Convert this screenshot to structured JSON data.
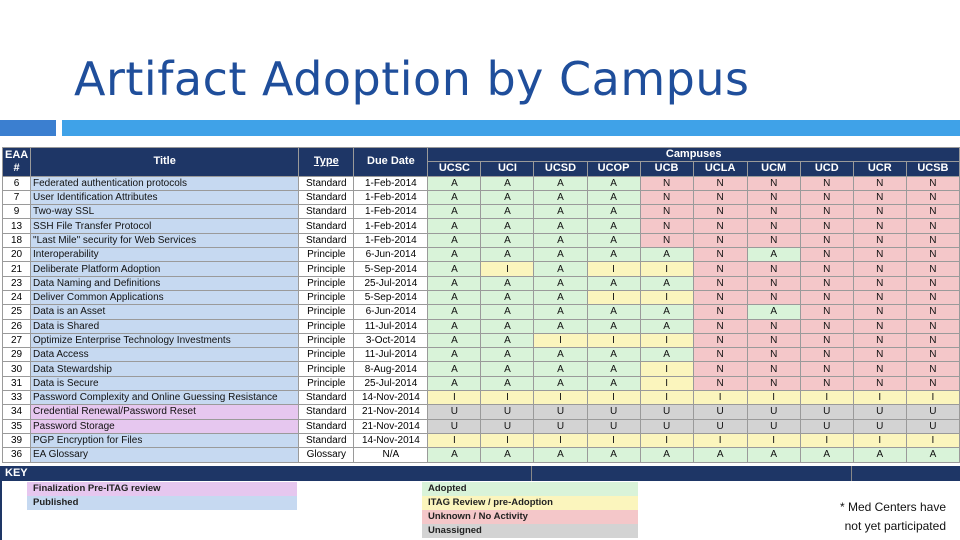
{
  "slide_title": "Artifact Adoption by Campus",
  "table": {
    "headers": {
      "eaa": "EAA\n#",
      "title": "Title",
      "type": "Type",
      "due": "Due Date",
      "campuses_group": "Campuses"
    },
    "campuses": [
      "UCSC",
      "UCI",
      "UCSD",
      "UCOP",
      "UCB",
      "UCLA",
      "UCM",
      "UCD",
      "UCR",
      "UCSB"
    ],
    "rows": [
      {
        "num": "6",
        "title": "Federated authentication protocols",
        "type": "Standard",
        "due": "1-Feb-2014",
        "status": [
          "A",
          "A",
          "A",
          "A",
          "N",
          "N",
          "N",
          "N",
          "N",
          "N"
        ]
      },
      {
        "num": "7",
        "title": "User Identification Attributes",
        "type": "Standard",
        "due": "1-Feb-2014",
        "status": [
          "A",
          "A",
          "A",
          "A",
          "N",
          "N",
          "N",
          "N",
          "N",
          "N"
        ]
      },
      {
        "num": "9",
        "title": "Two-way SSL",
        "type": "Standard",
        "due": "1-Feb-2014",
        "status": [
          "A",
          "A",
          "A",
          "A",
          "N",
          "N",
          "N",
          "N",
          "N",
          "N"
        ]
      },
      {
        "num": "13",
        "title": "SSH File Transfer Protocol",
        "type": "Standard",
        "due": "1-Feb-2014",
        "status": [
          "A",
          "A",
          "A",
          "A",
          "N",
          "N",
          "N",
          "N",
          "N",
          "N"
        ]
      },
      {
        "num": "18",
        "title": "\"Last Mile\" security for Web Services",
        "type": "Standard",
        "due": "1-Feb-2014",
        "status": [
          "A",
          "A",
          "A",
          "A",
          "N",
          "N",
          "N",
          "N",
          "N",
          "N"
        ]
      },
      {
        "num": "20",
        "title": "Interoperability",
        "type": "Principle",
        "due": "6-Jun-2014",
        "status": [
          "A",
          "A",
          "A",
          "A",
          "A",
          "N",
          "A",
          "N",
          "N",
          "N"
        ]
      },
      {
        "num": "21",
        "title": "Deliberate Platform Adoption",
        "type": "Principle",
        "due": "5-Sep-2014",
        "status": [
          "A",
          "I",
          "A",
          "I",
          "I",
          "N",
          "N",
          "N",
          "N",
          "N"
        ]
      },
      {
        "num": "23",
        "title": "Data Naming and Definitions",
        "type": "Principle",
        "due": "25-Jul-2014",
        "status": [
          "A",
          "A",
          "A",
          "A",
          "A",
          "N",
          "N",
          "N",
          "N",
          "N"
        ]
      },
      {
        "num": "24",
        "title": "Deliver Common Applications",
        "type": "Principle",
        "due": "5-Sep-2014",
        "status": [
          "A",
          "A",
          "A",
          "I",
          "I",
          "N",
          "N",
          "N",
          "N",
          "N"
        ]
      },
      {
        "num": "25",
        "title": "Data is an Asset",
        "type": "Principle",
        "due": "6-Jun-2014",
        "status": [
          "A",
          "A",
          "A",
          "A",
          "A",
          "N",
          "A",
          "N",
          "N",
          "N"
        ]
      },
      {
        "num": "26",
        "title": "Data is Shared",
        "type": "Principle",
        "due": "11-Jul-2014",
        "status": [
          "A",
          "A",
          "A",
          "A",
          "A",
          "N",
          "N",
          "N",
          "N",
          "N"
        ]
      },
      {
        "num": "27",
        "title": "Optimize Enterprise Technology Investments",
        "type": "Principle",
        "due": "3-Oct-2014",
        "status": [
          "A",
          "A",
          "I",
          "I",
          "I",
          "N",
          "N",
          "N",
          "N",
          "N"
        ]
      },
      {
        "num": "29",
        "title": "Data Access",
        "type": "Principle",
        "due": "11-Jul-2014",
        "status": [
          "A",
          "A",
          "A",
          "A",
          "A",
          "N",
          "N",
          "N",
          "N",
          "N"
        ]
      },
      {
        "num": "30",
        "title": "Data Stewardship",
        "type": "Principle",
        "due": "8-Aug-2014",
        "status": [
          "A",
          "A",
          "A",
          "A",
          "I",
          "N",
          "N",
          "N",
          "N",
          "N"
        ]
      },
      {
        "num": "31",
        "title": "Data is Secure",
        "type": "Principle",
        "due": "25-Jul-2014",
        "status": [
          "A",
          "A",
          "A",
          "A",
          "I",
          "N",
          "N",
          "N",
          "N",
          "N"
        ]
      },
      {
        "num": "33",
        "title": "Password Complexity and Online Guessing Resistance",
        "type": "Standard",
        "due": "14-Nov-2014",
        "status": [
          "I",
          "I",
          "I",
          "I",
          "I",
          "I",
          "I",
          "I",
          "I",
          "I"
        ]
      },
      {
        "num": "34",
        "title": "Credential Renewal/Password Reset",
        "type": "Standard",
        "due": "21-Nov-2014",
        "status": [
          "U",
          "U",
          "U",
          "U",
          "U",
          "U",
          "U",
          "U",
          "U",
          "U"
        ]
      },
      {
        "num": "35",
        "title": "Password Storage",
        "type": "Standard",
        "due": "21-Nov-2014",
        "status": [
          "U",
          "U",
          "U",
          "U",
          "U",
          "U",
          "U",
          "U",
          "U",
          "U"
        ]
      },
      {
        "num": "39",
        "title": "PGP Encryption for Files",
        "type": "Standard",
        "due": "14-Nov-2014",
        "status": [
          "I",
          "I",
          "I",
          "I",
          "I",
          "I",
          "I",
          "I",
          "I",
          "I"
        ]
      },
      {
        "num": "36",
        "title": "EA Glossary",
        "type": "Glossary",
        "due": "N/A",
        "status": [
          "A",
          "A",
          "A",
          "A",
          "A",
          "A",
          "A",
          "A",
          "A",
          "A"
        ]
      }
    ],
    "pink_title_rows": [
      16,
      17
    ]
  },
  "key": {
    "label": "KEY",
    "title_legend": [
      {
        "label": "Finalization Pre-ITAG review",
        "color": "#e6c7ef"
      },
      {
        "label": "Published",
        "color": "#c6d9f1"
      }
    ],
    "status_legend": [
      {
        "label": "Adopted",
        "color": "#d9f3d9"
      },
      {
        "label": "ITAG Review / pre-Adoption",
        "color": "#fbf5bd"
      },
      {
        "label": "Unknown / No Activity",
        "color": "#f4c7c9"
      },
      {
        "label": "Unassigned",
        "color": "#d3d3d3"
      }
    ]
  },
  "note": {
    "line1": "* Med Centers have",
    "line2": "not yet participated"
  }
}
